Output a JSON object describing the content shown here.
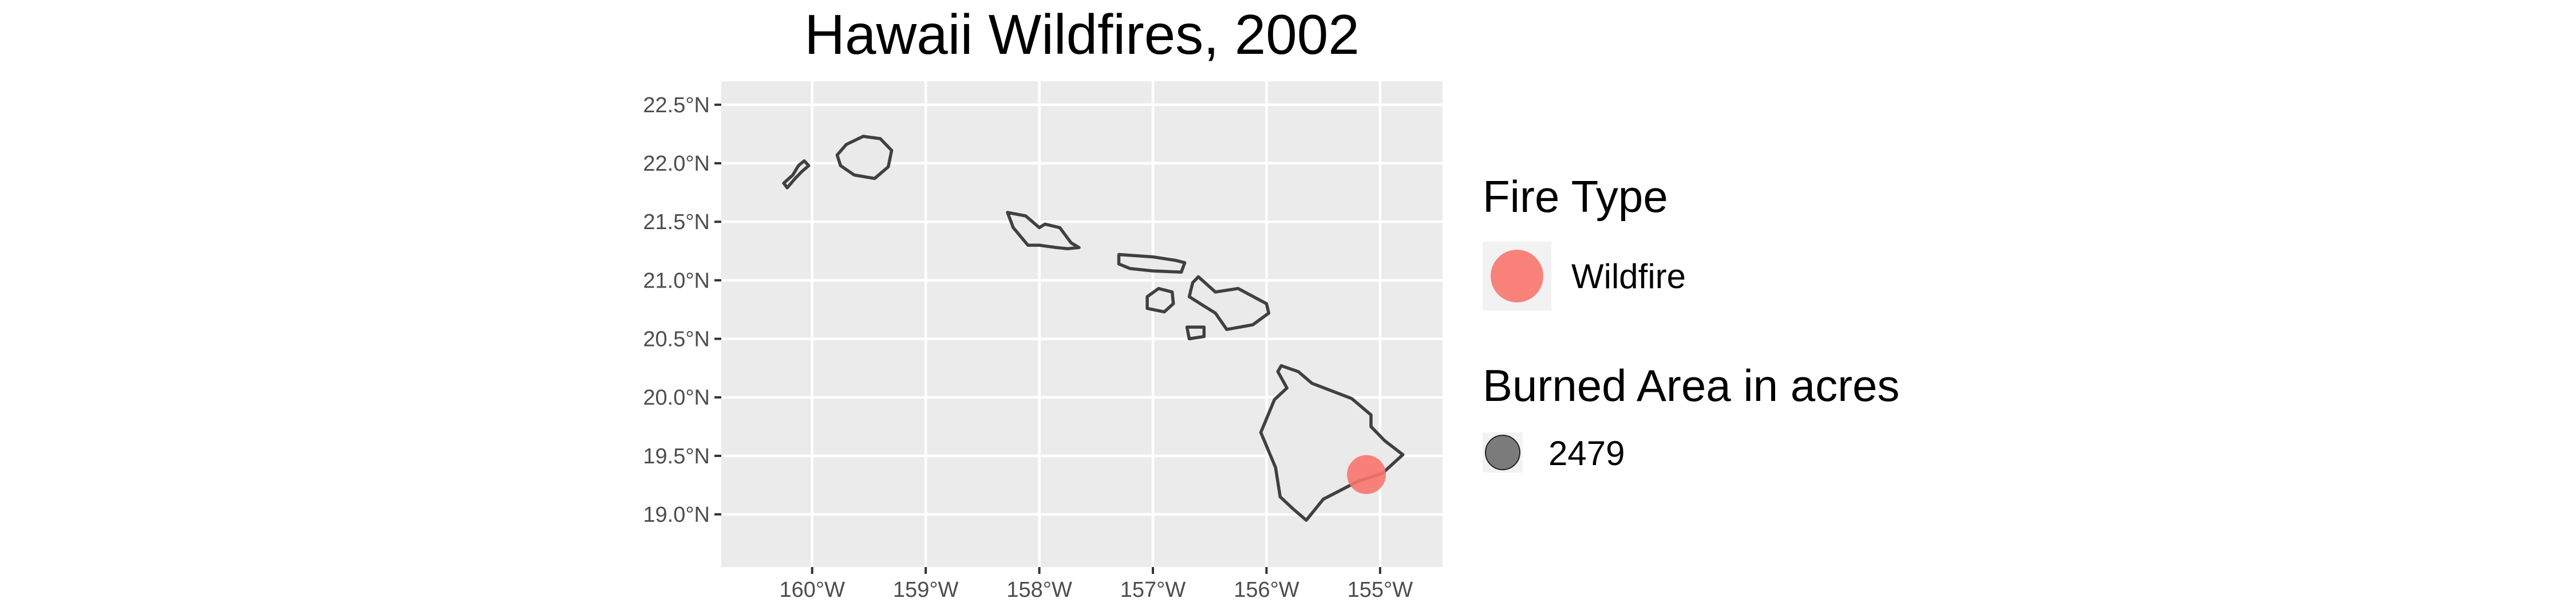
{
  "chart_data": {
    "type": "scatter",
    "title": "Hawaii Wildfires, 2002",
    "xlabel": "",
    "ylabel": "",
    "xlim": [
      -160.8,
      -154.45
    ],
    "ylim": [
      18.55,
      22.7
    ],
    "x_ticks": [
      -160,
      -159,
      -158,
      -157,
      -156,
      -155
    ],
    "x_tick_labels": [
      "160°W",
      "159°W",
      "158°W",
      "157°W",
      "156°W",
      "155°W"
    ],
    "y_ticks": [
      19.0,
      19.5,
      20.0,
      20.5,
      21.0,
      21.5,
      22.0,
      22.5
    ],
    "y_tick_labels": [
      "19.0°N",
      "19.5°N",
      "20.0°N",
      "20.5°N",
      "21.0°N",
      "21.5°N",
      "22.0°N",
      "22.5°N"
    ],
    "grid": true,
    "basemap": "Hawaiian Islands coastlines",
    "points": [
      {
        "lon": -155.12,
        "lat": 19.34,
        "fire_type": "Wildfire",
        "burned_acres": 2479
      }
    ],
    "legend": {
      "placement": "right",
      "fire_type": {
        "title": "Fire Type",
        "items": [
          {
            "label": "Wildfire",
            "color": "#F8766D"
          }
        ]
      },
      "burned_area": {
        "title": "Burned Area in acres",
        "items": [
          {
            "label": "2479"
          }
        ]
      }
    },
    "colors": {
      "panel_background": "#EBEBEB",
      "grid": "#FFFFFF",
      "land_fill": "#EAEAEA",
      "coast_stroke": "#404040",
      "wildfire": "#F8766D",
      "size_key": "#1a1a1a"
    }
  }
}
